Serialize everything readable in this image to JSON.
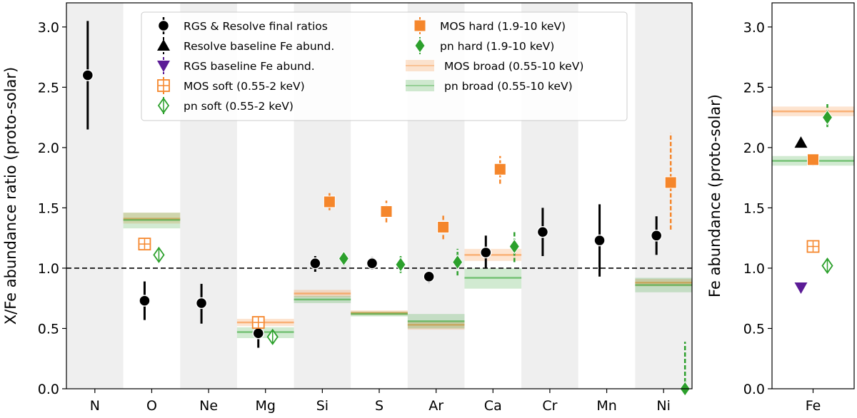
{
  "chart_data": [
    {
      "type": "scatter",
      "panel": "left",
      "ylabel": "X/Fe abundance ratio (proto-solar)",
      "ylim": [
        0,
        3.2
      ],
      "yticks": [
        "0.0",
        "0.5",
        "1.0",
        "1.5",
        "2.0",
        "2.5",
        "3.0"
      ],
      "categories": [
        "N",
        "O",
        "Ne",
        "Mg",
        "Si",
        "S",
        "Ar",
        "Ca",
        "Cr",
        "Mn",
        "Ni"
      ],
      "reference_line": 1.0,
      "legend": {
        "left": [
          "RGS & Resolve final ratios",
          "Resolve baseline Fe abund.",
          "RGS baseline Fe abund.",
          "MOS soft (0.55-2 keV)",
          "pn soft (0.55-2 keV)"
        ],
        "right": [
          "MOS hard (1.9-10 keV)",
          "pn hard (1.9-10 keV)",
          "MOS broad (0.55-10 keV)",
          "pn broad (0.55-10 keV)"
        ]
      },
      "series": [
        {
          "name": "RGS & Resolve final ratios",
          "color": "#000000",
          "points": [
            {
              "cat": "N",
              "y": 2.6,
              "lo": 2.15,
              "hi": 3.05
            },
            {
              "cat": "O",
              "y": 0.73,
              "lo": 0.57,
              "hi": 0.89
            },
            {
              "cat": "Ne",
              "y": 0.71,
              "lo": 0.54,
              "hi": 0.87
            },
            {
              "cat": "Mg",
              "y": 0.46,
              "lo": 0.34,
              "hi": 0.57
            },
            {
              "cat": "Si",
              "y": 1.04,
              "lo": 0.97,
              "hi": 1.1
            },
            {
              "cat": "S",
              "y": 1.04,
              "lo": 0.99,
              "hi": 1.09
            },
            {
              "cat": "Ar",
              "y": 0.93,
              "lo": 0.88,
              "hi": 0.97
            },
            {
              "cat": "Ca",
              "y": 1.13,
              "lo": 1.0,
              "hi": 1.27
            },
            {
              "cat": "Cr",
              "y": 1.3,
              "lo": 1.1,
              "hi": 1.5
            },
            {
              "cat": "Mn",
              "y": 1.23,
              "lo": 0.93,
              "hi": 1.53
            },
            {
              "cat": "Ni",
              "y": 1.27,
              "lo": 1.11,
              "hi": 1.43
            }
          ]
        },
        {
          "name": "MOS soft (0.55-2 keV)",
          "color": "#f5862b",
          "points": [
            {
              "cat": "O",
              "y": 1.2
            },
            {
              "cat": "Mg",
              "y": 0.55
            }
          ]
        },
        {
          "name": "pn soft (0.55-2 keV)",
          "color": "#2ca02c",
          "points": [
            {
              "cat": "O",
              "y": 1.11
            },
            {
              "cat": "Mg",
              "y": 0.43
            }
          ]
        },
        {
          "name": "MOS hard (1.9-10 keV)",
          "color": "#f5862b",
          "points": [
            {
              "cat": "Si",
              "y": 1.55,
              "lo": 1.48,
              "hi": 1.63
            },
            {
              "cat": "S",
              "y": 1.47,
              "lo": 1.38,
              "hi": 1.56
            },
            {
              "cat": "Ar",
              "y": 1.34,
              "lo": 1.24,
              "hi": 1.45
            },
            {
              "cat": "Ca",
              "y": 1.82,
              "lo": 1.7,
              "hi": 1.93
            },
            {
              "cat": "Ni",
              "y": 1.71,
              "lo": 1.32,
              "hi": 2.12
            }
          ]
        },
        {
          "name": "pn hard (1.9-10 keV)",
          "color": "#2ca02c",
          "points": [
            {
              "cat": "Si",
              "y": 1.08,
              "lo": 1.02,
              "hi": 1.13
            },
            {
              "cat": "S",
              "y": 1.03,
              "lo": 0.96,
              "hi": 1.1
            },
            {
              "cat": "Ar",
              "y": 1.05,
              "lo": 0.94,
              "hi": 1.16
            },
            {
              "cat": "Ca",
              "y": 1.18,
              "lo": 1.05,
              "hi": 1.31
            },
            {
              "cat": "Ni",
              "y": 0.0,
              "lo": 0.0,
              "hi": 0.39
            }
          ]
        },
        {
          "name": "MOS broad (0.55-10 keV)",
          "color": "#f5862b",
          "bands": [
            {
              "cat": "O",
              "y": 1.41,
              "lo": 1.37,
              "hi": 1.46
            },
            {
              "cat": "Mg",
              "y": 0.55,
              "lo": 0.52,
              "hi": 0.58
            },
            {
              "cat": "Si",
              "y": 0.79,
              "lo": 0.76,
              "hi": 0.82
            },
            {
              "cat": "S",
              "y": 0.63,
              "lo": 0.61,
              "hi": 0.65
            },
            {
              "cat": "Ar",
              "y": 0.53,
              "lo": 0.49,
              "hi": 0.56
            },
            {
              "cat": "Ca",
              "y": 1.11,
              "lo": 1.06,
              "hi": 1.16
            },
            {
              "cat": "Ni",
              "y": 0.88,
              "lo": 0.85,
              "hi": 0.91
            }
          ]
        },
        {
          "name": "pn broad (0.55-10 keV)",
          "color": "#2ca02c",
          "bands": [
            {
              "cat": "O",
              "y": 1.4,
              "lo": 1.33,
              "hi": 1.46
            },
            {
              "cat": "Mg",
              "y": 0.47,
              "lo": 0.42,
              "hi": 0.51
            },
            {
              "cat": "Si",
              "y": 0.74,
              "lo": 0.71,
              "hi": 0.77
            },
            {
              "cat": "S",
              "y": 0.62,
              "lo": 0.6,
              "hi": 0.64
            },
            {
              "cat": "Ar",
              "y": 0.56,
              "lo": 0.5,
              "hi": 0.62
            },
            {
              "cat": "Ca",
              "y": 0.92,
              "lo": 0.83,
              "hi": 1.0
            },
            {
              "cat": "Ni",
              "y": 0.86,
              "lo": 0.8,
              "hi": 0.92
            }
          ]
        }
      ]
    },
    {
      "type": "scatter",
      "panel": "right",
      "ylabel": "Fe abundance (proto-solar)",
      "ylim": [
        0,
        3.2
      ],
      "yticks": [
        "0.0",
        "0.5",
        "1.0",
        "1.5",
        "2.0",
        "2.5",
        "3.0"
      ],
      "categories": [
        "Fe"
      ],
      "series": [
        {
          "name": "Resolve baseline Fe abund.",
          "color": "#000000",
          "points": [
            {
              "cat": "Fe",
              "y": 2.04
            }
          ]
        },
        {
          "name": "RGS baseline Fe abund.",
          "color": "#5b1b96",
          "points": [
            {
              "cat": "Fe",
              "y": 0.84
            }
          ]
        },
        {
          "name": "MOS soft (0.55-2 keV)",
          "color": "#f5862b",
          "points": [
            {
              "cat": "Fe",
              "y": 1.18
            }
          ]
        },
        {
          "name": "pn soft (0.55-2 keV)",
          "color": "#2ca02c",
          "points": [
            {
              "cat": "Fe",
              "y": 1.02
            }
          ]
        },
        {
          "name": "MOS hard (1.9-10 keV)",
          "color": "#f5862b",
          "points": [
            {
              "cat": "Fe",
              "y": 1.9,
              "lo": 1.85,
              "hi": 1.95
            }
          ]
        },
        {
          "name": "pn hard (1.9-10 keV)",
          "color": "#2ca02c",
          "points": [
            {
              "cat": "Fe",
              "y": 2.25,
              "lo": 2.17,
              "hi": 2.36
            }
          ]
        },
        {
          "name": "MOS broad (0.55-10 keV)",
          "color": "#f5862b",
          "bands": [
            {
              "cat": "Fe",
              "y": 2.3,
              "lo": 2.26,
              "hi": 2.34
            }
          ]
        },
        {
          "name": "pn broad (0.55-10 keV)",
          "color": "#2ca02c",
          "bands": [
            {
              "cat": "Fe",
              "y": 1.89,
              "lo": 1.85,
              "hi": 1.93
            }
          ]
        }
      ]
    }
  ]
}
